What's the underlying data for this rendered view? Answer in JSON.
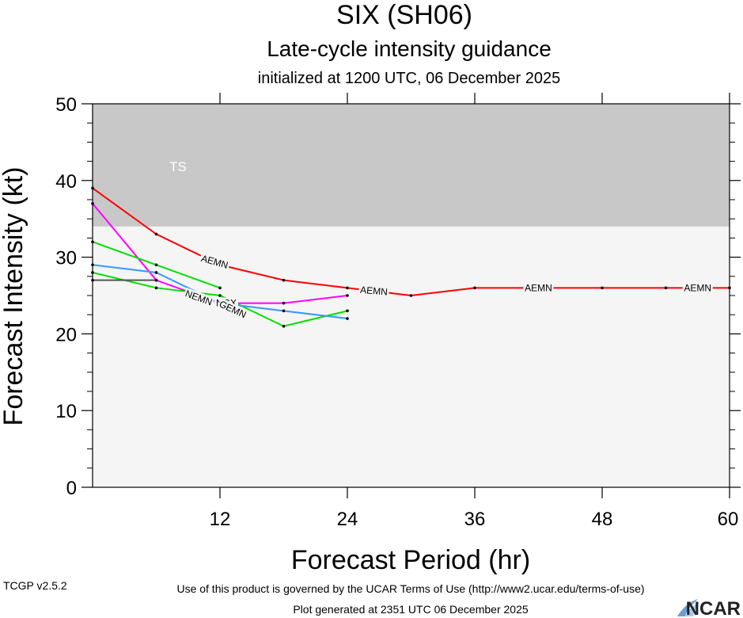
{
  "header": {
    "title": "SIX (SH06)",
    "subtitle": "Late-cycle intensity guidance",
    "initialized": "initialized at 1200 UTC, 06 December 2025"
  },
  "footer": {
    "terms": "Use of this product is governed by the UCAR Terms of Use (http://www2.ucar.edu/terms-of-use)",
    "version": "TCGP v2.5.2",
    "generated": "Plot generated at 2351 UTC   06 December 2025",
    "brand": "NCAR"
  },
  "colors": {
    "ts_band": "#c8c8c8",
    "plot_bg": "#f5f5f5",
    "AEMN": "#ff0000",
    "magenta": "#ff00ff",
    "green": "#00e000",
    "blue": "#3399ff",
    "gray": "#555555"
  },
  "chart_data": {
    "type": "line",
    "xlabel": "Forecast Period (hr)",
    "ylabel": "Forecast Intensity (kt)",
    "xlim": [
      0,
      60
    ],
    "ylim": [
      0,
      50
    ],
    "xticks": [
      12,
      24,
      36,
      48,
      60
    ],
    "yticks": [
      0,
      10,
      20,
      30,
      40,
      50
    ],
    "bands": [
      {
        "label": "TS",
        "from": 34,
        "to": 50,
        "color": "#c8c8c8"
      }
    ],
    "series": [
      {
        "name": "AEMN",
        "color": "#ff0000",
        "x": [
          0,
          6,
          12,
          18,
          24,
          30,
          36,
          42,
          48,
          54,
          60
        ],
        "y": [
          39,
          33,
          29,
          27,
          26,
          25,
          26,
          26,
          26,
          26,
          26
        ]
      },
      {
        "color": "#ff00ff",
        "x": [
          0,
          6,
          12,
          18,
          24
        ],
        "y": [
          37,
          27,
          24,
          24,
          25
        ]
      },
      {
        "color": "#00e000",
        "x": [
          0,
          6,
          12
        ],
        "y": [
          32,
          29,
          26
        ]
      },
      {
        "color": "#00e000",
        "x": [
          0,
          6,
          12,
          18,
          24
        ],
        "y": [
          28,
          26,
          25,
          21,
          23
        ]
      },
      {
        "color": "#3399ff",
        "x": [
          0,
          6,
          12,
          18,
          24
        ],
        "y": [
          29,
          28,
          24,
          23,
          22
        ]
      },
      {
        "color": "#555555",
        "x": [
          0,
          6
        ],
        "y": [
          27,
          27
        ]
      }
    ],
    "annotations": [
      {
        "text": "AEMN",
        "x": 11.5,
        "y": 29.4,
        "angle": 16
      },
      {
        "text": "AEMN",
        "x": 26.5,
        "y": 25.6,
        "angle": 5
      },
      {
        "text": "AEMN",
        "x": 42,
        "y": 26,
        "angle": 0
      },
      {
        "text": "AEMN",
        "x": 57,
        "y": 26,
        "angle": 0
      },
      {
        "text": "NEMN",
        "x": 10,
        "y": 24.7,
        "angle": 20
      },
      {
        "text": "NGX",
        "x": 12.6,
        "y": 24,
        "angle": 0
      },
      {
        "text": "GEMN",
        "x": 13.2,
        "y": 23.2,
        "angle": 25
      }
    ]
  }
}
